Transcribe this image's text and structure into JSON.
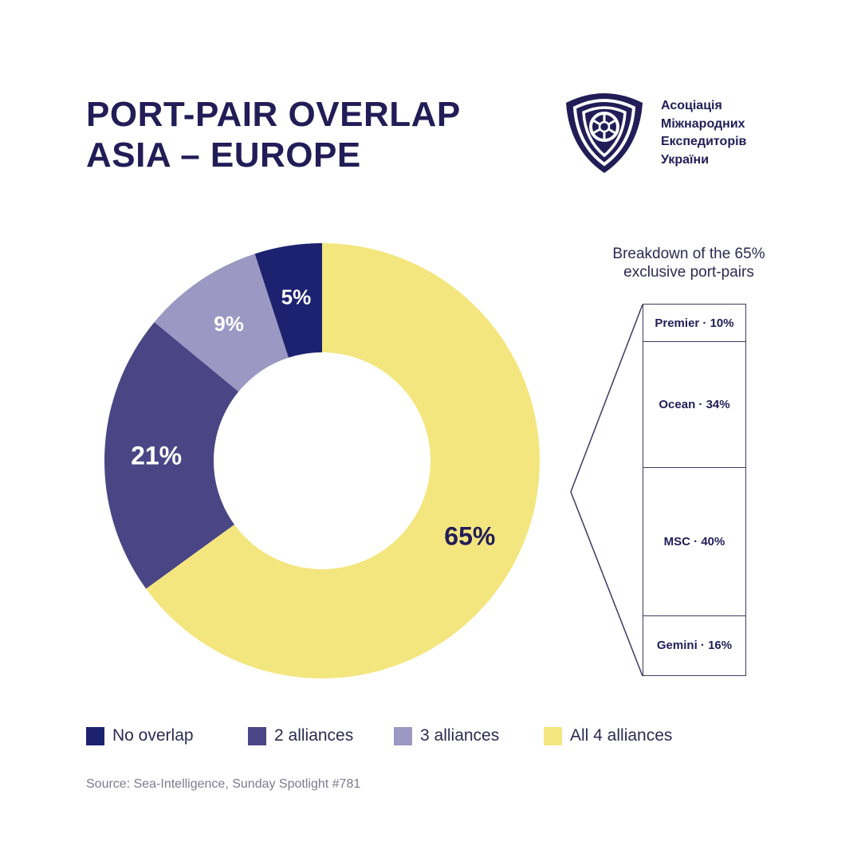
{
  "header": {
    "title_line1": "PORT-PAIR OVERLAP",
    "title_line2": "ASIA – EUROPE"
  },
  "organization": {
    "name_lines": [
      "Асоціація",
      "Міжнародних",
      "Експедиторів",
      "України"
    ],
    "logo_icon": "shield-triskelion-logo-icon"
  },
  "chart_data": [
    {
      "type": "pie",
      "variant": "donut",
      "categories": [
        "All 4 alliances",
        "2 alliances",
        "3 alliances",
        "No overlap"
      ],
      "values": [
        65,
        21,
        9,
        5
      ],
      "labels": [
        "65%",
        "21%",
        "9%",
        "5%"
      ],
      "colors": [
        "#f4e67f",
        "#4a4685",
        "#9b98c3",
        "#1d2270"
      ],
      "label_colors": [
        "#221d57",
        "#ffffff",
        "#ffffff",
        "#ffffff"
      ],
      "legend": {
        "position": "bottom",
        "items": [
          {
            "label": "No overlap",
            "color": "#1d2270"
          },
          {
            "label": "2 alliances",
            "color": "#4a4685"
          },
          {
            "label": "3 alliances",
            "color": "#9b98c3"
          },
          {
            "label": "All 4 alliances",
            "color": "#f4e67f"
          }
        ]
      }
    },
    {
      "type": "bar",
      "variant": "stacked-100",
      "title_lines": [
        "Breakdown of the 65%",
        "exclusive port-pairs"
      ],
      "categories": [
        "Premier",
        "Ocean",
        "MSC",
        "Gemini"
      ],
      "values": [
        10,
        34,
        40,
        16
      ],
      "labels": [
        "Premier · 10%",
        "Ocean · 34%",
        "MSC · 40%",
        "Gemini · 16%"
      ]
    }
  ],
  "source": "Source: Sea-Intelligence, Sunday Spotlight #781",
  "colors": {
    "title": "#221d57",
    "outline": "#3d3963",
    "background": "#ffffff"
  }
}
